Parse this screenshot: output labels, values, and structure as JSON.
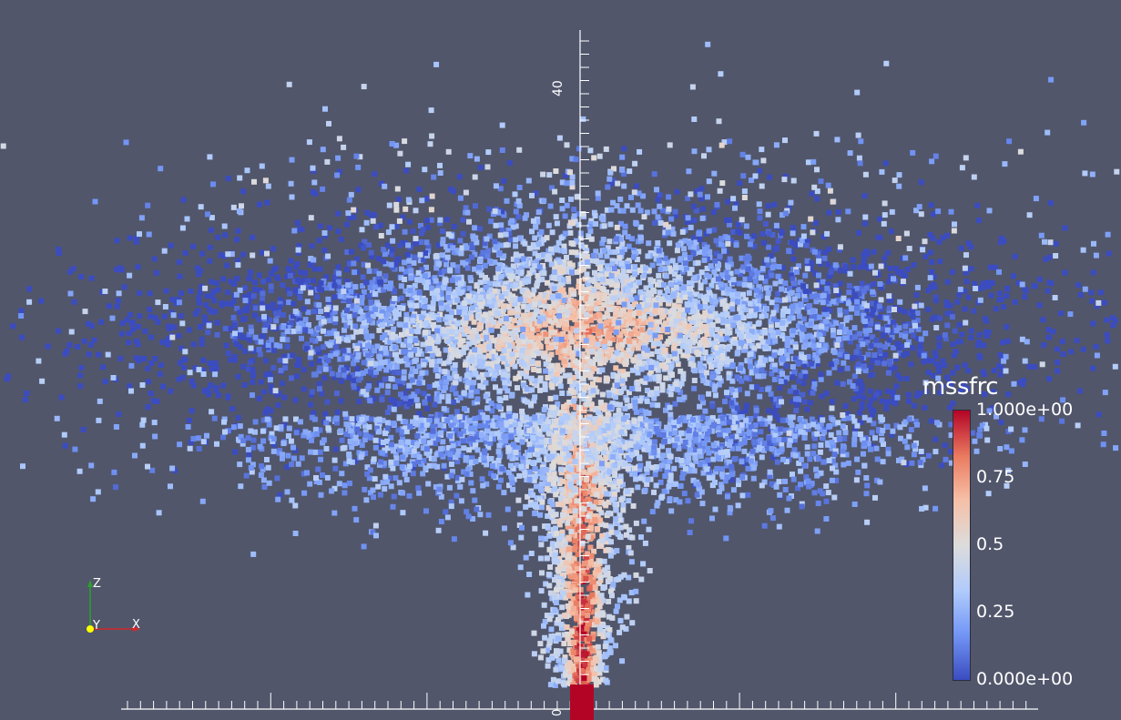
{
  "legend": {
    "title": "mssfrc",
    "labels": [
      "1.000e+00",
      "0.75",
      "0.5",
      "0.25",
      "0.000e+00"
    ],
    "range": [
      0,
      1
    ],
    "colors": [
      "#3b4cc0",
      "#7396f5",
      "#b0cbfc",
      "#dddcdc",
      "#f6bfa6",
      "#ea7b60",
      "#b40426"
    ]
  },
  "axes": {
    "vertical_tick_label": "40",
    "horizontal_origin_label": "0"
  },
  "orientation": {
    "z_label": "Z",
    "y_label": "Y",
    "x_label": "X",
    "colors": {
      "x": "#d62728",
      "y": "#ffff00",
      "z": "#2ca02c"
    }
  },
  "background_color": "#51566b"
}
